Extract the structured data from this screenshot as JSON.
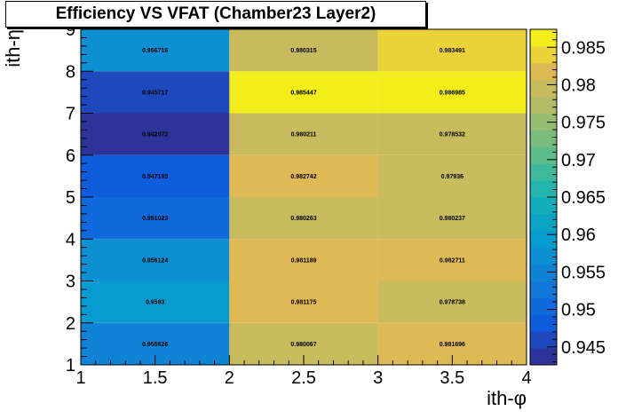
{
  "title": "Efficiency VS VFAT (Chamber23 Layer2)",
  "chart_data": {
    "type": "heatmap",
    "xlabel": "ith-φ",
    "ylabel": "ith-η",
    "xlim": [
      1,
      4
    ],
    "ylim": [
      1,
      9
    ],
    "x_bin_edges": [
      1,
      2,
      3,
      4
    ],
    "y_bin_edges": [
      1,
      2,
      3,
      4,
      5,
      6,
      7,
      8,
      9
    ],
    "x_ticks": [
      "1",
      "1.5",
      "2",
      "2.5",
      "3",
      "3.5",
      "4"
    ],
    "y_ticks": [
      "1",
      "2",
      "3",
      "4",
      "5",
      "6",
      "7",
      "8",
      "9"
    ],
    "colorbar_range": [
      0.9426,
      0.9874
    ],
    "colorbar_ticks": [
      "0.945",
      "0.95",
      "0.955",
      "0.96",
      "0.965",
      "0.97",
      "0.975",
      "0.98",
      "0.985"
    ],
    "cells": [
      [
        "0.955626",
        "0.980067",
        "0.981696"
      ],
      [
        "0.9593",
        "0.981175",
        "0.978738"
      ],
      [
        "0.956124",
        "0.981189",
        "0.982711"
      ],
      [
        "0.951023",
        "0.980263",
        "0.980237"
      ],
      [
        "0.947193",
        "0.982742",
        "0.97936"
      ],
      [
        "0.942672",
        "0.980211",
        "0.978532"
      ],
      [
        "0.945717",
        "0.985447",
        "0.986985"
      ],
      [
        "0.956716",
        "0.980315",
        "0.983491"
      ]
    ]
  }
}
